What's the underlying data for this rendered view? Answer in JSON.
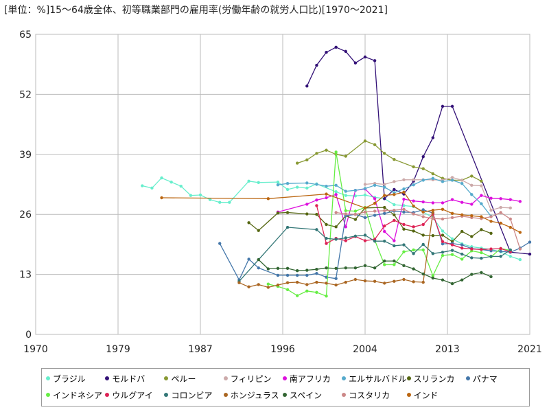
{
  "chart_data": {
    "type": "line",
    "title": "[単位：%]15～64歳全体、初等職業部門の雇用率(労働年齢の就労人口比)[1970～2021]",
    "xlabel": "",
    "ylabel": "",
    "xlim": [
      1970,
      2021
    ],
    "ylim": [
      0,
      65
    ],
    "x_ticks": [
      "1970",
      "1979",
      "1987",
      "1996",
      "2004",
      "2013",
      "2021"
    ],
    "x_tick_values": [
      1970,
      1978.5,
      1987,
      1995.5,
      2004,
      2012.5,
      2021
    ],
    "y_ticks": [
      "0",
      "13",
      "26",
      "39",
      "52",
      "65"
    ],
    "y_tick_values": [
      0,
      13,
      26,
      39,
      52,
      65
    ],
    "grid": true,
    "legend_position": "bottom",
    "series": [
      {
        "name": "ブラジル",
        "color": "#66eecc",
        "x": [
          1981,
          1982,
          1983,
          1984,
          1985,
          1986,
          1987,
          1988,
          1989,
          1990,
          1992,
          1993,
          1995,
          1996,
          1997,
          1998,
          1999,
          2001,
          2002,
          2003,
          2004,
          2005,
          2006,
          2007,
          2008,
          2009,
          2011,
          2012,
          2013,
          2014,
          2015,
          2016,
          2017,
          2018,
          2019,
          2020
        ],
        "y": [
          32.2,
          31.7,
          33.9,
          33,
          32.1,
          30.1,
          30.2,
          29.2,
          28.6,
          28.6,
          33.2,
          32.9,
          33,
          31.4,
          31.9,
          31.7,
          32.6,
          30.9,
          30.1,
          30,
          30.2,
          29.7,
          29.4,
          28.1,
          27.9,
          27.7,
          25.3,
          22.4,
          20.7,
          19.6,
          19,
          18.7,
          18.4,
          17.9,
          16.9,
          16.2
        ]
      },
      {
        "name": "モルドバ",
        "color": "#331177",
        "x": [
          1998,
          1999,
          2000,
          2001,
          2002,
          2003,
          2004,
          2005,
          2006,
          2007,
          2008,
          2009,
          2010,
          2011,
          2012,
          2013,
          2019,
          2021
        ],
        "y": [
          53.8,
          58.3,
          61.1,
          62.2,
          61.3,
          58.8,
          60.1,
          59.3,
          29.4,
          31.4,
          30.4,
          33.2,
          38.5,
          42.6,
          49.4,
          49.4,
          17.8,
          17.4
        ]
      },
      {
        "name": "ペルー",
        "color": "#889933",
        "x": [
          1997,
          1998,
          1999,
          2000,
          2001,
          2002,
          2004,
          2005,
          2006,
          2007,
          2009,
          2010,
          2011,
          2012,
          2013,
          2014,
          2015,
          2016
        ],
        "y": [
          37.1,
          37.8,
          39.2,
          39.9,
          39,
          38.6,
          41.9,
          41.1,
          39.2,
          37.9,
          36.3,
          35.9,
          34.8,
          33.8,
          33.4,
          33.4,
          34.3,
          33.2
        ]
      },
      {
        "name": "フィリピン",
        "color": "#ccaaaa",
        "x": [
          2004,
          2005,
          2006,
          2007,
          2008,
          2009,
          2010,
          2011,
          2012,
          2013,
          2014,
          2015,
          2016,
          2017,
          2018,
          2019
        ],
        "y": [
          32.5,
          32.7,
          32.5,
          33.1,
          33.5,
          33.5,
          33.5,
          33.5,
          33.4,
          34,
          33.4,
          32.3,
          32.2,
          26.9,
          27.5,
          27.4
        ]
      },
      {
        "name": "南アフリカ",
        "color": "#dd11dd",
        "x": [
          1995,
          1998,
          1999,
          2000,
          2001,
          2002,
          2003,
          2004,
          2005,
          2006,
          2007,
          2008,
          2009,
          2010,
          2011,
          2012,
          2013,
          2014,
          2015,
          2016,
          2017,
          2018,
          2019,
          2020
        ],
        "y": [
          26.5,
          28.2,
          29.1,
          29.6,
          30.3,
          23.3,
          31.2,
          31.5,
          29.4,
          22.3,
          20.3,
          29.3,
          28.9,
          28.7,
          28.5,
          28.5,
          29.2,
          28.6,
          28.2,
          30.1,
          29.5,
          29.4,
          29.2,
          28.8
        ]
      },
      {
        "name": "エルサルバドル",
        "color": "#55aacc",
        "x": [
          1995,
          1996,
          1998,
          1999,
          2000,
          2001,
          2002,
          2003,
          2004,
          2005,
          2006,
          2007,
          2008,
          2009,
          2010,
          2011,
          2012,
          2013,
          2014,
          2015,
          2016,
          2017
        ],
        "y": [
          32.4,
          32.7,
          32.8,
          32.5,
          32.1,
          32.3,
          31,
          31.2,
          31.6,
          32.3,
          31.9,
          30.7,
          31.5,
          32.4,
          33.4,
          33.8,
          33.1,
          33.4,
          32.7,
          30.3,
          28.3,
          25.6
        ]
      },
      {
        "name": "スリランカ",
        "color": "#556611",
        "x": [
          1992,
          1993,
          1995,
          1996,
          1998,
          1999,
          2000,
          2001,
          2002,
          2003,
          2004,
          2006,
          2007,
          2008,
          2009,
          2010,
          2011,
          2012,
          2013,
          2014,
          2015,
          2016,
          2017
        ],
        "y": [
          24.2,
          22.5,
          26.3,
          26.4,
          26.1,
          26,
          23.8,
          23.3,
          25.7,
          24.9,
          27.4,
          27.5,
          25.9,
          22.8,
          22.4,
          21.5,
          21.4,
          21.5,
          20.1,
          22.3,
          21.2,
          22.7,
          21.9
        ]
      },
      {
        "name": "パナマ",
        "color": "#4477aa",
        "x": [
          1989,
          1991,
          1992,
          1993,
          1995,
          1996,
          1997,
          1998,
          1999,
          2000,
          2001,
          2002,
          2003,
          2004,
          2005,
          2006,
          2007,
          2008,
          2009,
          2010,
          2011,
          2012,
          2013,
          2014,
          2015,
          2016,
          2017,
          2018,
          2019,
          2020,
          2021
        ],
        "y": [
          19.7,
          11.8,
          16.3,
          14.4,
          12.8,
          12.8,
          12.8,
          12.8,
          13.2,
          12.4,
          12.1,
          25.7,
          26,
          25.3,
          25.8,
          26.2,
          26.7,
          26.5,
          26.4,
          27,
          26.3,
          19.6,
          19.7,
          19.4,
          18.6,
          18.4,
          18.1,
          18,
          17.8,
          18.7,
          20
        ]
      },
      {
        "name": "インドネシア",
        "color": "#66ee44",
        "x": [
          1994,
          1995,
          1996,
          1997,
          1998,
          1999,
          2000,
          2001,
          2002,
          2003,
          2004,
          2005,
          2006,
          2007,
          2008,
          2009,
          2010,
          2011,
          2012,
          2013,
          2014,
          2015,
          2016,
          2017,
          2018,
          2019
        ],
        "y": [
          10.9,
          10.4,
          9.7,
          8.4,
          9.4,
          9.1,
          8.3,
          39.5,
          26.8,
          26.7,
          27.5,
          20.4,
          15.1,
          15.1,
          17.9,
          18.3,
          18.3,
          12.7,
          17.1,
          17.3,
          16.3,
          18.1,
          17.7,
          16.8,
          18.6,
          18.2
        ]
      },
      {
        "name": "ウルグアイ",
        "color": "#dd2255",
        "x": [
          1999,
          2000,
          2001,
          2002,
          2003,
          2004,
          2005,
          2006,
          2007,
          2008,
          2009,
          2010,
          2011,
          2012,
          2013,
          2014,
          2015,
          2016,
          2017,
          2018,
          2019
        ],
        "y": [
          27.9,
          19.7,
          20.8,
          20.3,
          21.2,
          20.3,
          20.6,
          23.5,
          24.7,
          23.8,
          23.3,
          23.8,
          26.1,
          20.1,
          19.4,
          18.7,
          18.5,
          18.4,
          18.5,
          18.6,
          17.9
        ]
      },
      {
        "name": "コロンビア",
        "color": "#337777",
        "x": [
          1991,
          1996,
          1999,
          2000,
          2001,
          2002,
          2003,
          2004,
          2005,
          2006,
          2007,
          2008,
          2009,
          2010,
          2011,
          2012,
          2013,
          2014,
          2015,
          2016,
          2017,
          2018,
          2019
        ],
        "y": [
          11.5,
          23.2,
          22.7,
          20.8,
          20.6,
          20.9,
          21.3,
          21.5,
          20.2,
          20.2,
          19.2,
          19.4,
          17.5,
          19.5,
          17.5,
          17.8,
          18.2,
          17.4,
          16.6,
          16.5,
          16.9,
          16.9,
          18.3
        ]
      },
      {
        "name": "ホンジュラス",
        "color": "#aa6622",
        "x": [
          1991,
          1992,
          1993,
          1994,
          1995,
          1996,
          1997,
          1998,
          1999,
          2000,
          2001,
          2002,
          2003,
          2004,
          2005,
          2006,
          2007,
          2008,
          2009,
          2010,
          2011
        ],
        "y": [
          11.2,
          10.3,
          10.8,
          10.2,
          10.7,
          11.2,
          11.3,
          10.8,
          11.3,
          11.1,
          10.7,
          11.3,
          11.9,
          11.6,
          11.5,
          11.1,
          11.5,
          11.9,
          11.4,
          11.3,
          26.4
        ]
      },
      {
        "name": "スペイン",
        "color": "#336633",
        "x": [
          1993,
          1994,
          1995,
          1996,
          1997,
          1998,
          1999,
          2000,
          2001,
          2002,
          2003,
          2004,
          2005,
          2006,
          2007,
          2008,
          2009,
          2010,
          2011,
          2012,
          2013,
          2014,
          2015,
          2016,
          2017
        ],
        "y": [
          16.2,
          14.2,
          14.3,
          14.3,
          13.8,
          13.9,
          14.1,
          14.4,
          14.3,
          14.4,
          14.4,
          14.9,
          14.4,
          15.9,
          15.9,
          14.9,
          14.2,
          13.1,
          12.2,
          11.8,
          11,
          11.8,
          13,
          13.4,
          12.5
        ]
      },
      {
        "name": "コスタリカ",
        "color": "#cc8888",
        "x": [
          2001,
          2002,
          2003,
          2004,
          2005,
          2006,
          2007,
          2008,
          2009,
          2010,
          2011,
          2012,
          2013,
          2014,
          2015,
          2016,
          2017,
          2018,
          2019,
          2020
        ],
        "y": [
          26.4,
          26.1,
          26,
          26.5,
          26.7,
          26.8,
          26.9,
          27.1,
          26.1,
          25.5,
          25.1,
          25,
          25.3,
          25.6,
          25.3,
          25.1,
          25.5,
          26.4,
          25,
          18.5
        ]
      },
      {
        "name": "インド",
        "color": "#bb6611",
        "x": [
          1983,
          1994,
          2000,
          2004,
          2005,
          2006,
          2007,
          2008,
          2009,
          2010,
          2011,
          2012,
          2013,
          2014,
          2015,
          2016,
          2017,
          2018,
          2019,
          2020
        ],
        "y": [
          29.6,
          29.4,
          30.4,
          27.4,
          28.4,
          30.1,
          30.3,
          30.8,
          27.8,
          26.5,
          26.9,
          27.1,
          26.2,
          25.9,
          25.7,
          25.5,
          24.5,
          24.1,
          23.2,
          22.1
        ]
      }
    ]
  }
}
